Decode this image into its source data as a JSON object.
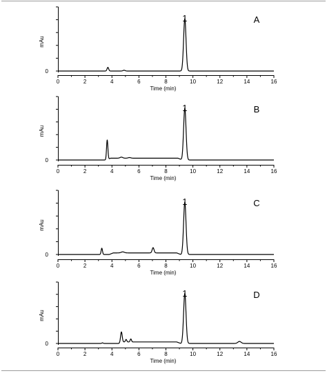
{
  "chart_data": [
    {
      "type": "line",
      "panel_label": "A",
      "xlabel": "Time (min)",
      "ylabel": "mAu",
      "xlim": [
        0,
        16
      ],
      "x_ticks": [
        0,
        2,
        4,
        6,
        8,
        10,
        12,
        14,
        16
      ],
      "y_ticks": [
        0
      ],
      "ylim": [
        -0.04,
        1.15
      ],
      "grid": false,
      "peak_annotation": {
        "label": "1",
        "x": 9.4
      },
      "baseline": 0.0,
      "drift": [],
      "peaks": [
        {
          "x": 3.7,
          "height": 0.07,
          "width": 0.06
        },
        {
          "x": 4.9,
          "height": 0.015,
          "width": 0.08
        },
        {
          "x": 9.4,
          "height": 1.0,
          "width": 0.09
        }
      ]
    },
    {
      "type": "line",
      "panel_label": "B",
      "xlabel": "Time (min)",
      "ylabel": "mAu",
      "xlim": [
        0,
        16
      ],
      "x_ticks": [
        0,
        2,
        4,
        6,
        8,
        10,
        12,
        14,
        16
      ],
      "y_ticks": [
        0
      ],
      "ylim": [
        -0.04,
        1.15
      ],
      "grid": false,
      "peak_annotation": {
        "label": "1",
        "x": 9.4
      },
      "baseline": 0.0,
      "drift": [
        {
          "from": 3.6,
          "to": 9.2,
          "level": 0.035
        }
      ],
      "peaks": [
        {
          "x": 3.65,
          "height": 0.38,
          "width": 0.05
        },
        {
          "x": 4.7,
          "height": 0.02,
          "width": 0.1
        },
        {
          "x": 5.3,
          "height": 0.012,
          "width": 0.1
        },
        {
          "x": 9.4,
          "height": 1.0,
          "width": 0.09
        }
      ]
    },
    {
      "type": "line",
      "panel_label": "C",
      "xlabel": "Time (min)",
      "ylabel": "mAu",
      "xlim": [
        0,
        16
      ],
      "x_ticks": [
        0,
        2,
        4,
        6,
        8,
        10,
        12,
        14,
        16
      ],
      "y_ticks": [
        0
      ],
      "ylim": [
        -0.04,
        1.15
      ],
      "grid": false,
      "peak_annotation": {
        "label": "1",
        "x": 9.4
      },
      "baseline": 0.0,
      "drift": [
        {
          "from": 3.8,
          "to": 9.1,
          "level": 0.03
        }
      ],
      "peaks": [
        {
          "x": 3.25,
          "height": 0.12,
          "width": 0.05
        },
        {
          "x": 4.8,
          "height": 0.02,
          "width": 0.12
        },
        {
          "x": 7.05,
          "height": 0.1,
          "width": 0.07
        },
        {
          "x": 9.4,
          "height": 1.0,
          "width": 0.09
        }
      ]
    },
    {
      "type": "line",
      "panel_label": "D",
      "xlabel": "Time (min)",
      "ylabel": "mAu",
      "xlim": [
        0,
        16
      ],
      "x_ticks": [
        0,
        2,
        4,
        6,
        8,
        10,
        12,
        14,
        16
      ],
      "y_ticks": [
        0
      ],
      "ylim": [
        -0.04,
        1.15
      ],
      "grid": false,
      "peak_annotation": {
        "label": "1",
        "x": 9.4
      },
      "baseline": 0.0,
      "drift": [
        {
          "from": 4.5,
          "to": 9.1,
          "level": 0.03
        }
      ],
      "peaks": [
        {
          "x": 3.3,
          "height": 0.012,
          "width": 0.05
        },
        {
          "x": 4.7,
          "height": 0.21,
          "width": 0.06
        },
        {
          "x": 5.05,
          "height": 0.05,
          "width": 0.05
        },
        {
          "x": 5.4,
          "height": 0.06,
          "width": 0.05
        },
        {
          "x": 9.4,
          "height": 1.0,
          "width": 0.09
        },
        {
          "x": 13.45,
          "height": 0.04,
          "width": 0.12
        }
      ]
    }
  ]
}
